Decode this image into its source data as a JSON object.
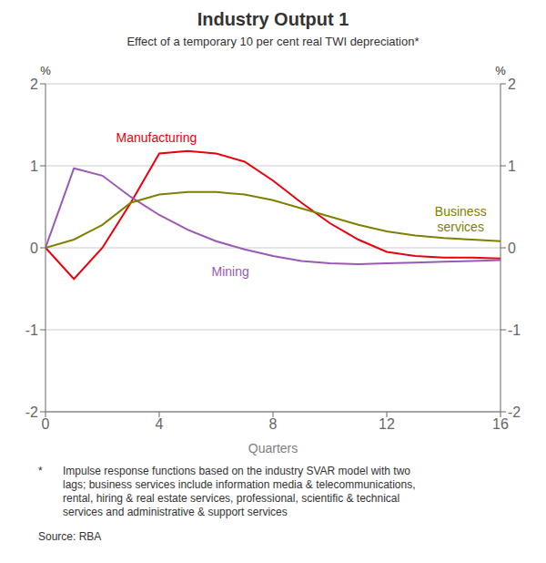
{
  "chart_data": {
    "type": "line",
    "title": "Industry Output 1",
    "subtitle": "Effect of a temporary 10 per cent real TWI depreciation*",
    "x_label": "Quarters",
    "y_label": "%",
    "y2_label": "%",
    "x": [
      0,
      1,
      2,
      3,
      4,
      5,
      6,
      7,
      8,
      9,
      10,
      11,
      12,
      13,
      14,
      15,
      16
    ],
    "series": [
      {
        "name": "Manufacturing",
        "color": "#e8000d",
        "values": [
          0,
          -0.38,
          0.0,
          0.55,
          1.15,
          1.18,
          1.15,
          1.05,
          0.82,
          0.55,
          0.3,
          0.1,
          -0.05,
          -0.1,
          -0.12,
          -0.12,
          -0.13
        ]
      },
      {
        "name": "Mining",
        "color": "#9b59b6",
        "values": [
          0,
          0.97,
          0.88,
          0.62,
          0.4,
          0.22,
          0.08,
          -0.02,
          -0.1,
          -0.16,
          -0.19,
          -0.2,
          -0.19,
          -0.18,
          -0.17,
          -0.16,
          -0.15
        ]
      },
      {
        "name": "Business\nservices",
        "color": "#808000",
        "values": [
          0,
          0.1,
          0.28,
          0.55,
          0.65,
          0.68,
          0.68,
          0.65,
          0.58,
          0.48,
          0.38,
          0.28,
          0.2,
          0.15,
          0.12,
          0.1,
          0.08
        ]
      }
    ],
    "xlim": [
      0,
      16
    ],
    "xticks": [
      0,
      4,
      8,
      12,
      16
    ],
    "ylim": [
      -2,
      2
    ],
    "yticks": [
      -2,
      -1,
      0,
      1,
      2
    ],
    "y2lim": [
      -2,
      2
    ],
    "y2ticks": [
      -2,
      -1,
      0,
      1,
      2
    ],
    "grid": true,
    "footnote_star": "*",
    "footnote": "Impulse response functions based on the industry SVAR model with two\nlags; business services include information media & telecommunications,\nrental, hiring & real estate services, professional, scientific & technical\nservices and administrative & support services",
    "source": "Source: RBA"
  }
}
